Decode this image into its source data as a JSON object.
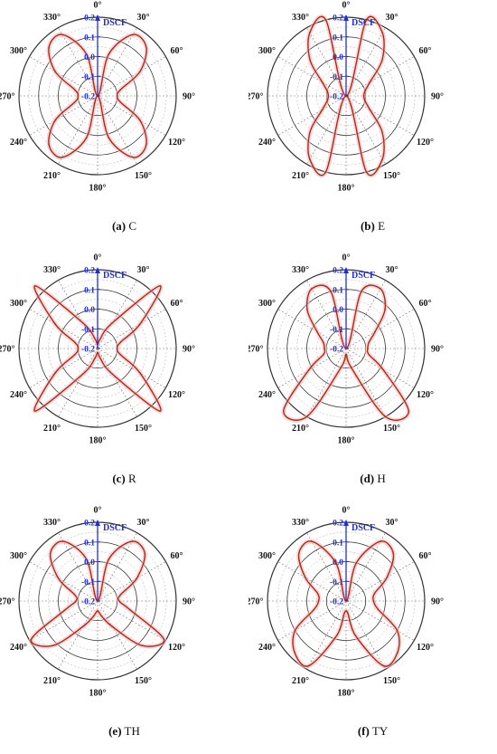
{
  "figure": {
    "r_axis_title": "DSCF",
    "angle_labels": [
      "0°",
      "30°",
      "60°",
      "90°",
      "120°",
      "150°",
      "180°",
      "210°",
      "240°",
      "270°",
      "300°",
      "330°"
    ],
    "r_tick_labels": [
      "0.2",
      "0.1",
      "0.0",
      "-0.1",
      "-0.2"
    ],
    "colors": {
      "curve": "#b22a0a",
      "axis": "#1f2fd0",
      "rings": "#333333",
      "spokes": "#777777",
      "fill": "#f4b9c8"
    }
  },
  "chart_data": [
    {
      "type": "polar-line",
      "rlim": [
        -0.2,
        0.2
      ],
      "r_label": "DSCF",
      "caption_letter": "(a)",
      "caption_text": "C",
      "theta": [
        0,
        15,
        30,
        45,
        60,
        75,
        90,
        105,
        120,
        135,
        150,
        165,
        180,
        195,
        210,
        225,
        240,
        255,
        270,
        285,
        300,
        315,
        330,
        345
      ],
      "r": [
        -0.2,
        0.02,
        0.16,
        0.15,
        0.05,
        -0.08,
        -0.1,
        -0.08,
        0.05,
        0.15,
        0.16,
        0.02,
        -0.2,
        0.02,
        0.16,
        0.15,
        0.05,
        -0.08,
        -0.1,
        -0.08,
        0.05,
        0.15,
        0.16,
        0.02
      ]
    },
    {
      "type": "polar-line",
      "rlim": [
        -0.2,
        0.2
      ],
      "r_label": "DSCF",
      "caption_letter": "(b)",
      "caption_text": "E",
      "theta": [
        0,
        15,
        30,
        45,
        60,
        75,
        90,
        105,
        120,
        135,
        150,
        165,
        180,
        195,
        210,
        225,
        240,
        255,
        270,
        285,
        300,
        315,
        330,
        345
      ],
      "r": [
        -0.2,
        0.2,
        0.17,
        0.06,
        -0.06,
        -0.1,
        -0.11,
        -0.1,
        -0.06,
        0.06,
        0.17,
        0.2,
        -0.2,
        0.2,
        0.17,
        0.06,
        -0.06,
        -0.1,
        -0.11,
        -0.1,
        -0.06,
        0.06,
        0.17,
        0.2
      ]
    },
    {
      "type": "polar-line",
      "rlim": [
        -0.2,
        0.2
      ],
      "r_label": "DSCF",
      "caption_letter": "(c)",
      "caption_text": "R",
      "theta": [
        0,
        15,
        30,
        45,
        60,
        75,
        90,
        105,
        120,
        135,
        150,
        165,
        180,
        195,
        210,
        225,
        240,
        255,
        270,
        285,
        300,
        315,
        330,
        345
      ],
      "r": [
        -0.18,
        -0.15,
        -0.05,
        0.25,
        0.05,
        -0.08,
        -0.1,
        -0.08,
        0.05,
        0.25,
        -0.05,
        -0.15,
        -0.18,
        -0.15,
        -0.05,
        0.25,
        0.05,
        -0.08,
        -0.1,
        -0.08,
        0.05,
        0.25,
        -0.05,
        -0.15
      ]
    },
    {
      "type": "polar-line",
      "rlim": [
        -0.2,
        0.2
      ],
      "r_label": "DSCF",
      "caption_letter": "(d)",
      "caption_text": "H",
      "theta": [
        0,
        15,
        30,
        45,
        60,
        75,
        90,
        105,
        120,
        135,
        150,
        165,
        180,
        195,
        210,
        225,
        240,
        255,
        270,
        285,
        300,
        315,
        330,
        345
      ],
      "r": [
        -0.2,
        0.1,
        0.15,
        0.08,
        -0.03,
        -0.08,
        -0.09,
        -0.08,
        0.02,
        0.25,
        0.2,
        -0.1,
        -0.17,
        -0.1,
        0.2,
        0.25,
        0.02,
        -0.08,
        -0.09,
        -0.08,
        -0.03,
        0.08,
        0.15,
        0.1
      ]
    },
    {
      "type": "polar-line",
      "rlim": [
        -0.2,
        0.2
      ],
      "r_label": "DSCF",
      "caption_letter": "(e)",
      "caption_text": "TH",
      "theta": [
        0,
        15,
        30,
        45,
        60,
        75,
        90,
        105,
        120,
        135,
        150,
        165,
        180,
        195,
        210,
        225,
        240,
        255,
        270,
        285,
        300,
        315,
        330,
        345
      ],
      "r": [
        -0.2,
        0.02,
        0.15,
        0.14,
        0.03,
        -0.08,
        -0.09,
        -0.03,
        0.19,
        0.12,
        -0.05,
        -0.12,
        -0.15,
        -0.12,
        -0.05,
        0.12,
        0.19,
        -0.03,
        -0.09,
        -0.08,
        0.03,
        0.14,
        0.15,
        0.02
      ]
    },
    {
      "type": "polar-line",
      "rlim": [
        -0.2,
        0.2
      ],
      "r_label": "DSCF",
      "caption_letter": "(f)",
      "caption_text": "TY",
      "theta": [
        0,
        15,
        30,
        45,
        60,
        75,
        90,
        105,
        120,
        135,
        150,
        165,
        180,
        195,
        210,
        225,
        240,
        255,
        270,
        285,
        300,
        315,
        330,
        345
      ],
      "r": [
        -0.2,
        0.0,
        0.15,
        0.14,
        0.04,
        -0.05,
        -0.06,
        -0.03,
        0.1,
        0.17,
        0.18,
        -0.02,
        -0.15,
        -0.02,
        0.18,
        0.17,
        0.1,
        -0.03,
        -0.06,
        -0.05,
        0.04,
        0.14,
        0.15,
        0.0
      ]
    }
  ]
}
